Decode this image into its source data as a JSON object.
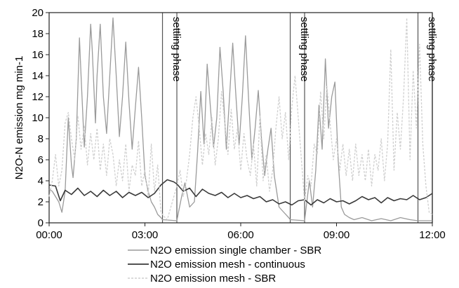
{
  "chart_data": {
    "type": "line",
    "title": "",
    "xlabel": "",
    "ylabel": "N2O-N emission mg min-1",
    "xlim_hours": [
      0,
      12
    ],
    "ylim": [
      0,
      20
    ],
    "yticks": [
      0,
      2,
      4,
      6,
      8,
      10,
      12,
      14,
      16,
      18,
      20
    ],
    "xtick_hours": [
      0,
      3,
      6,
      9,
      12
    ],
    "xtick_labels": [
      "00:00",
      "03:00",
      "06:00",
      "09:00",
      "12:00"
    ],
    "grid": false,
    "legend_position": "bottom",
    "annotations": [
      {
        "text": "settling phase",
        "x_start": 3.55,
        "x_end": 4.0
      },
      {
        "text": "settling phase",
        "x_start": 7.55,
        "x_end": 8.0
      },
      {
        "text": "settling phase",
        "x_start": 11.55,
        "x_end": 12.0
      }
    ],
    "series": [
      {
        "name": "N2O emission single chamber - SBR",
        "color": "#9a9a9a",
        "style": "solid",
        "x": [
          0.0,
          0.1,
          0.2,
          0.3,
          0.4,
          0.5,
          0.6,
          0.7,
          0.75,
          0.85,
          0.95,
          1.0,
          1.1,
          1.2,
          1.3,
          1.35,
          1.45,
          1.5,
          1.6,
          1.7,
          1.8,
          1.9,
          2.0,
          2.1,
          2.2,
          2.3,
          2.4,
          2.5,
          2.6,
          2.7,
          2.8,
          2.9,
          3.0,
          3.1,
          3.2,
          3.3,
          3.4,
          3.5,
          3.55,
          4.0,
          4.05,
          4.15,
          4.25,
          4.4,
          4.55,
          4.65,
          4.75,
          4.85,
          4.95,
          5.05,
          5.15,
          5.25,
          5.35,
          5.45,
          5.55,
          5.65,
          5.75,
          5.85,
          5.95,
          6.05,
          6.15,
          6.25,
          6.35,
          6.45,
          6.55,
          6.65,
          6.75,
          6.85,
          6.95,
          7.05,
          7.2,
          7.35,
          7.5,
          7.55,
          8.0,
          8.05,
          8.15,
          8.25,
          8.35,
          8.45,
          8.55,
          8.65,
          8.75,
          8.85,
          8.95,
          9.05,
          9.15,
          9.25,
          9.4,
          9.55,
          9.8,
          10.1,
          10.4,
          10.7,
          11.0,
          11.3,
          11.55,
          12.0
        ],
        "y": [
          3.2,
          3.0,
          2.5,
          2.0,
          1.0,
          3.0,
          10.0,
          5.5,
          4.3,
          8.0,
          17.6,
          14.0,
          7.2,
          12.0,
          18.9,
          16.5,
          9.5,
          14.0,
          18.9,
          12.0,
          8.5,
          14.0,
          19.5,
          14.0,
          8.2,
          12.0,
          17.2,
          11.5,
          7.0,
          11.0,
          14.8,
          10.0,
          4.5,
          3.0,
          2.0,
          1.5,
          0.8,
          0.5,
          0.3,
          0.2,
          1.0,
          2.5,
          3.8,
          1.5,
          2.0,
          6.8,
          12.5,
          7.5,
          15.1,
          11.0,
          7.2,
          10.0,
          16.7,
          12.5,
          7.0,
          12.0,
          17.1,
          12.0,
          7.4,
          12.0,
          17.8,
          11.5,
          6.0,
          9.0,
          12.6,
          8.0,
          4.5,
          7.0,
          9.0,
          4.5,
          1.5,
          1.0,
          0.5,
          0.3,
          0.2,
          1.5,
          4.0,
          1.5,
          5.0,
          11.2,
          7.0,
          15.6,
          9.0,
          12.0,
          13.4,
          6.0,
          1.5,
          0.8,
          0.5,
          0.3,
          0.5,
          0.2,
          0.4,
          0.2,
          0.5,
          0.3,
          0.2,
          0.2
        ]
      },
      {
        "name": "N2O emission mesh - continuous",
        "color": "#3a3a3a",
        "style": "solid",
        "x": [
          0.0,
          0.2,
          0.35,
          0.5,
          0.7,
          0.9,
          1.1,
          1.3,
          1.5,
          1.7,
          1.9,
          2.1,
          2.3,
          2.5,
          2.7,
          2.9,
          3.1,
          3.3,
          3.5,
          3.7,
          3.9,
          4.0,
          4.2,
          4.4,
          4.6,
          4.8,
          5.0,
          5.2,
          5.4,
          5.6,
          5.8,
          6.0,
          6.2,
          6.4,
          6.6,
          6.8,
          7.0,
          7.2,
          7.4,
          7.6,
          7.8,
          8.0,
          8.2,
          8.4,
          8.6,
          8.8,
          9.0,
          9.2,
          9.4,
          9.6,
          9.8,
          10.0,
          10.2,
          10.4,
          10.6,
          10.8,
          11.0,
          11.2,
          11.4,
          11.6,
          11.8,
          12.0
        ],
        "y": [
          3.6,
          3.5,
          2.1,
          3.1,
          2.7,
          3.3,
          2.6,
          3.0,
          2.5,
          3.1,
          2.6,
          3.0,
          2.4,
          2.9,
          2.6,
          2.9,
          2.4,
          2.8,
          3.6,
          4.1,
          3.9,
          3.7,
          3.0,
          3.3,
          2.5,
          3.2,
          2.8,
          2.6,
          2.9,
          2.4,
          2.8,
          2.4,
          2.6,
          2.3,
          2.5,
          2.0,
          2.2,
          1.8,
          2.0,
          1.7,
          2.1,
          2.2,
          1.7,
          2.2,
          1.9,
          2.3,
          2.0,
          2.1,
          1.8,
          2.1,
          2.5,
          2.2,
          2.4,
          1.9,
          2.4,
          2.1,
          2.3,
          2.2,
          2.6,
          2.2,
          2.4,
          2.8
        ]
      },
      {
        "name": "N2O emission mesh - SBR",
        "color": "#cfcfcf",
        "style": "dashed",
        "x": [
          0.0,
          0.1,
          0.2,
          0.3,
          0.4,
          0.5,
          0.6,
          0.7,
          0.8,
          0.9,
          1.0,
          1.1,
          1.2,
          1.3,
          1.4,
          1.5,
          1.6,
          1.7,
          1.8,
          1.9,
          2.0,
          2.1,
          2.2,
          2.3,
          2.4,
          2.5,
          2.6,
          2.7,
          2.8,
          2.9,
          3.0,
          3.1,
          3.2,
          3.3,
          3.4,
          3.5,
          3.6,
          3.7,
          4.0,
          4.1,
          4.2,
          4.3,
          4.4,
          4.5,
          4.6,
          4.7,
          4.8,
          4.9,
          5.0,
          5.1,
          5.2,
          5.3,
          5.4,
          5.5,
          5.6,
          5.7,
          5.8,
          5.9,
          6.0,
          6.1,
          6.2,
          6.3,
          6.4,
          6.5,
          6.6,
          6.7,
          6.8,
          6.9,
          7.0,
          7.1,
          7.2,
          7.3,
          7.4,
          7.5,
          7.6,
          7.7,
          8.0,
          8.1,
          8.2,
          8.3,
          8.4,
          8.5,
          8.6,
          8.7,
          8.8,
          8.9,
          9.0,
          9.1,
          9.2,
          9.3,
          9.4,
          9.5,
          9.6,
          9.7,
          9.8,
          9.9,
          10.0,
          10.1,
          10.2,
          10.3,
          10.4,
          10.5,
          10.6,
          10.7,
          10.8,
          10.9,
          11.0,
          11.1,
          11.2,
          11.3,
          11.4,
          11.5,
          11.6,
          11.7,
          11.8,
          11.9,
          12.0
        ],
        "y": [
          2.5,
          4.0,
          6.5,
          3.5,
          5.0,
          9.5,
          10.5,
          8.0,
          6.0,
          10.2,
          7.0,
          9.2,
          5.5,
          8.5,
          6.0,
          9.0,
          5.0,
          7.5,
          4.5,
          8.0,
          6.5,
          3.5,
          6.0,
          4.0,
          7.5,
          3.0,
          5.5,
          4.5,
          7.8,
          3.5,
          5.0,
          2.5,
          7.5,
          3.0,
          5.5,
          1.0,
          0.6,
          0.3,
          3.5,
          5.0,
          2.5,
          4.0,
          6.5,
          10.0,
          12.0,
          9.0,
          5.5,
          8.5,
          6.5,
          10.0,
          5.5,
          8.0,
          12.5,
          9.5,
          6.5,
          10.8,
          7.0,
          9.0,
          5.0,
          8.5,
          6.0,
          4.5,
          7.5,
          3.5,
          10.2,
          4.0,
          6.5,
          3.0,
          5.0,
          9.0,
          12.0,
          8.0,
          10.5,
          6.0,
          11.0,
          14.0,
          2.0,
          4.5,
          3.5,
          7.5,
          6.5,
          12.5,
          8.0,
          13.0,
          9.5,
          6.0,
          8.0,
          5.0,
          7.5,
          4.5,
          7.0,
          4.0,
          7.5,
          4.5,
          6.5,
          4.0,
          7.0,
          3.5,
          6.5,
          5.0,
          8.0,
          4.0,
          7.5,
          16.5,
          5.0,
          10.5,
          7.0,
          12.0,
          19.5,
          6.0,
          14.5,
          9.0,
          17.0,
          7.5,
          3.5,
          1.0,
          0.8
        ]
      }
    ]
  }
}
